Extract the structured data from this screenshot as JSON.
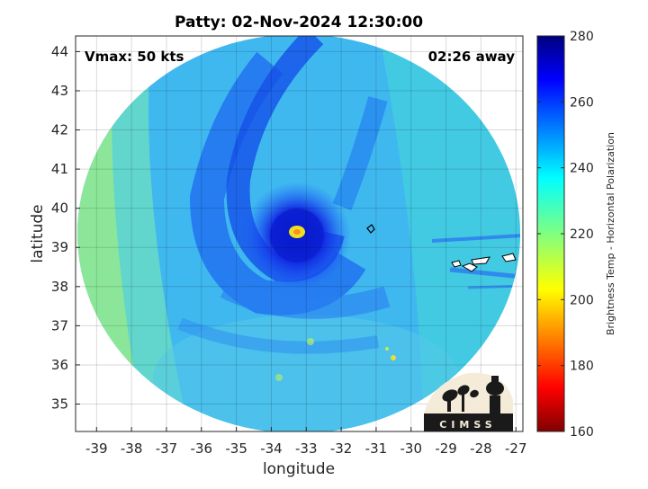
{
  "chart_data": {
    "type": "heatmap",
    "title": "Patty: 02-Nov-2024 12:30:00",
    "xlabel": "longitude",
    "ylabel": "latitude",
    "xlim": [
      -39.6,
      -26.8
    ],
    "ylim": [
      34.3,
      44.4
    ],
    "xticks": [
      -39,
      -38,
      -37,
      -36,
      -35,
      -34,
      -33,
      -32,
      -31,
      -30,
      -29,
      -28,
      -27
    ],
    "yticks": [
      35,
      36,
      37,
      38,
      39,
      40,
      41,
      42,
      43,
      44
    ],
    "grid": true,
    "annotations": {
      "vmax": "Vmax: 50 kts",
      "time_offset": "02:26 away"
    },
    "storm_center": {
      "lon": -33.1,
      "lat": 39.4
    },
    "colorbar": {
      "label": "Brightness Temp - Horizontal Polarization",
      "range": [
        160,
        280
      ],
      "ticks": [
        160,
        180,
        200,
        220,
        240,
        260,
        280
      ],
      "colormap": "jet"
    },
    "logo_text": "CIMSS"
  }
}
